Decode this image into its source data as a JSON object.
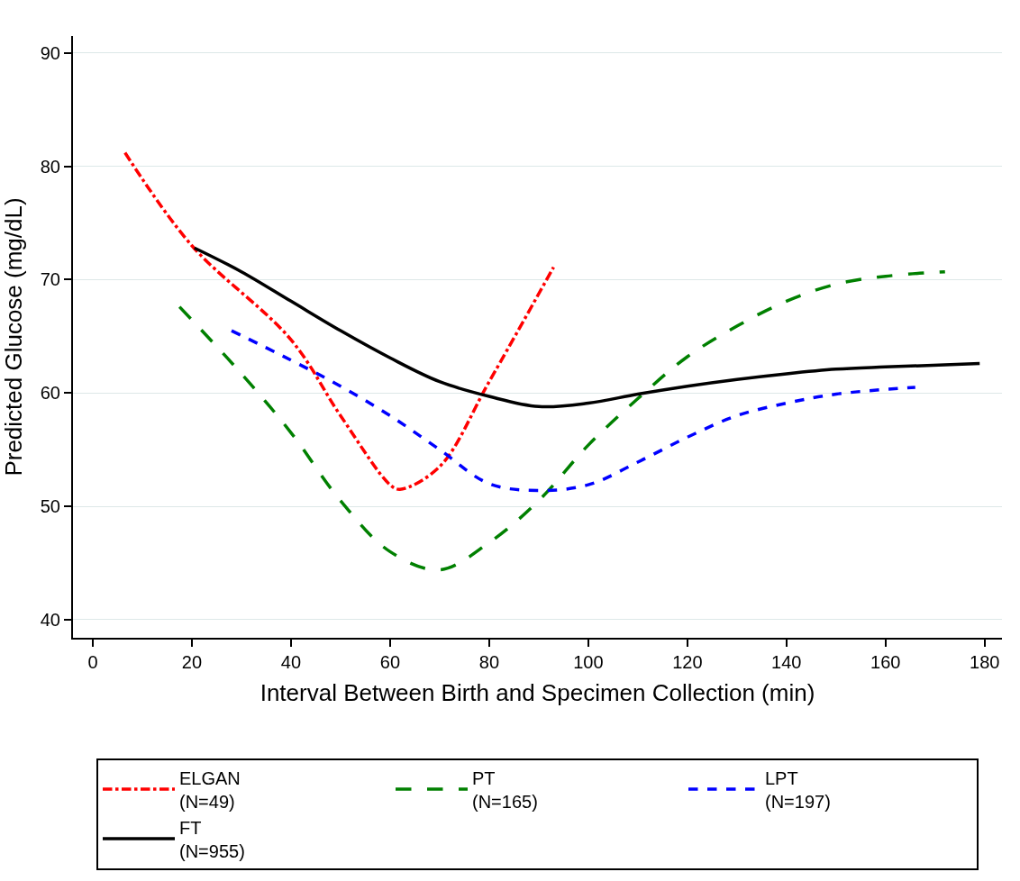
{
  "chart_data": {
    "type": "line",
    "xlabel": "Interval Between Birth and Specimen Collection (min)",
    "ylabel": "Predicted Glucose (mg/dL)",
    "xlim": [
      -4,
      183.5
    ],
    "xticks": [
      0,
      20,
      40,
      60,
      80,
      100,
      120,
      140,
      160,
      180
    ],
    "ylim": [
      38.4,
      91.5
    ],
    "yticks": [
      40,
      50,
      60,
      70,
      80,
      90
    ],
    "grid": "y",
    "legend": "bottom",
    "marker": "none",
    "series": [
      {
        "name": "ELGAN\n(N=49)",
        "color": "#ff0000",
        "line_style": "dashdot",
        "x": [
          6.5,
          20,
          40,
          50,
          60,
          62,
          70,
          80,
          93
        ],
        "values": [
          81.2,
          73,
          64.7,
          58,
          51.9,
          51.5,
          53.5,
          61,
          71.1
        ]
      },
      {
        "name": "PT\n(N=165)",
        "color": "#008000",
        "line_style": "longdash",
        "x": [
          17.5,
          30,
          40,
          50,
          60,
          70,
          80,
          90,
          100,
          110,
          120,
          130,
          140,
          150,
          160,
          172
        ],
        "values": [
          67.6,
          61.7,
          56.5,
          50.5,
          46,
          44.4,
          46.8,
          50.5,
          55.4,
          59.5,
          63.2,
          65.9,
          68.1,
          69.6,
          70.3,
          70.7
        ]
      },
      {
        "name": "LPT\n(N=197)",
        "color": "#0000ff",
        "line_style": "dashed",
        "x": [
          28,
          40,
          50,
          60,
          70,
          80,
          90,
          100,
          110,
          120,
          130,
          140,
          150,
          166
        ],
        "values": [
          65.5,
          62.9,
          60.6,
          58,
          55,
          52,
          51.4,
          51.9,
          53.9,
          56.1,
          58,
          59.1,
          59.9,
          60.5
        ]
      },
      {
        "name": "FT\n(N=955)",
        "color": "#000000",
        "line_style": "solid",
        "x": [
          20.5,
          30,
          40,
          50,
          60,
          70,
          80,
          90,
          100,
          110,
          120,
          130,
          140,
          150,
          160,
          179
        ],
        "values": [
          72.8,
          70.7,
          68.1,
          65.5,
          63.1,
          61,
          59.7,
          58.8,
          59.1,
          59.9,
          60.6,
          61.2,
          61.7,
          62.1,
          62.3,
          62.6
        ]
      }
    ]
  }
}
